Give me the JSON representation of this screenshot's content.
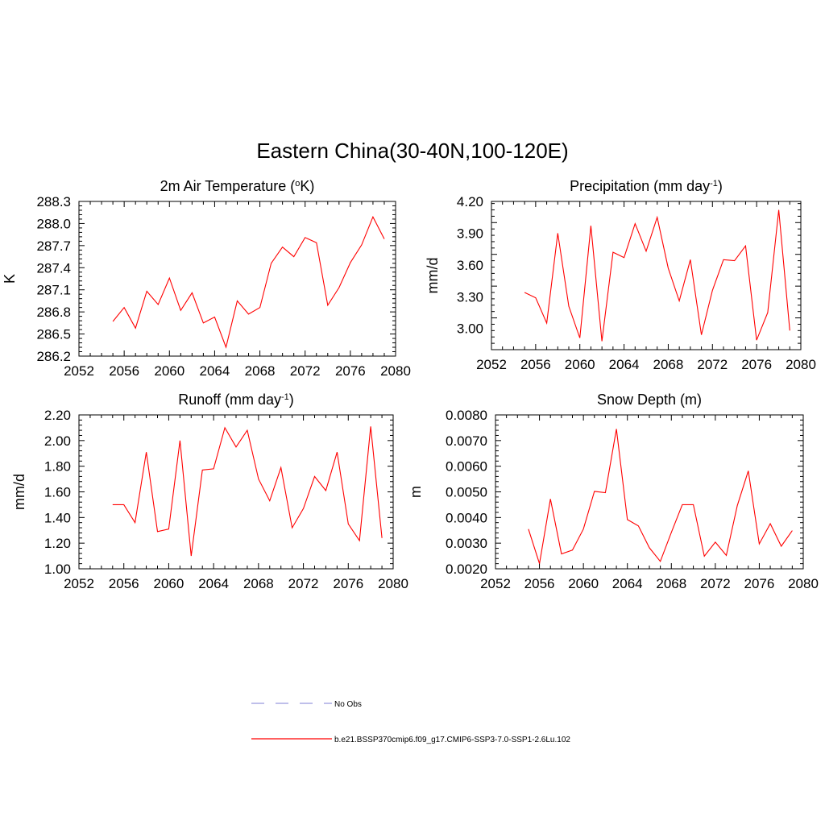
{
  "title": "Eastern China(30-40N,100-120E)",
  "legend": {
    "placement": "bottom-center",
    "entries": [
      {
        "label": "No Obs",
        "color": "#9999dd",
        "dash": true
      },
      {
        "label": "b.e21.BSSP370cmip6.f09_g17.CMIP6-SSP3-7.0-SSP1-2.6Lu.102",
        "color": "#ff0000",
        "dash": false
      }
    ]
  },
  "chart_data": [
    {
      "type": "line",
      "title": "2m Air Temperature (",
      "title_sup": "o",
      "title_tail": "K)",
      "ylabel": "K",
      "xlim": [
        2052,
        2080
      ],
      "ylim": [
        286.2,
        288.3
      ],
      "xticks": [
        2052,
        2056,
        2060,
        2064,
        2068,
        2072,
        2076,
        2080
      ],
      "yticks": [
        286.2,
        286.5,
        286.8,
        287.1,
        287.4,
        287.7,
        288.0,
        288.3
      ],
      "ytick_labels": [
        "286.2",
        "286.5",
        "286.8",
        "287.1",
        "287.4",
        "287.7",
        "288.0",
        "288.3"
      ],
      "series": [
        {
          "color": "#ff0000",
          "x": [
            2055,
            2056,
            2057,
            2058,
            2059,
            2060,
            2061,
            2062,
            2063,
            2064,
            2065,
            2066,
            2067,
            2068,
            2069,
            2070,
            2071,
            2072,
            2073,
            2074,
            2075,
            2076,
            2077,
            2078,
            2079
          ],
          "y": [
            286.67,
            286.86,
            286.58,
            287.08,
            286.9,
            287.26,
            286.82,
            287.06,
            286.65,
            286.73,
            286.32,
            286.95,
            286.77,
            286.86,
            287.46,
            287.68,
            287.55,
            287.81,
            287.74,
            286.89,
            287.13,
            287.47,
            287.71,
            288.09,
            287.79
          ]
        }
      ]
    },
    {
      "type": "line",
      "title": "Precipitation (mm day",
      "title_sup": "-1",
      "title_tail": ")",
      "ylabel": "mm/d",
      "xlim": [
        2052,
        2080
      ],
      "ylim": [
        2.8,
        4.2
      ],
      "xticks": [
        2052,
        2056,
        2060,
        2064,
        2068,
        2072,
        2076,
        2080
      ],
      "yticks": [
        3.0,
        3.3,
        3.6,
        3.9,
        4.2
      ],
      "ytick_labels": [
        "3.00",
        "3.30",
        "3.60",
        "3.90",
        "4.20"
      ],
      "series": [
        {
          "color": "#ff0000",
          "x": [
            2055,
            2056,
            2057,
            2058,
            2059,
            2060,
            2061,
            2062,
            2063,
            2064,
            2065,
            2066,
            2067,
            2068,
            2069,
            2070,
            2071,
            2072,
            2073,
            2074,
            2075,
            2076,
            2077,
            2078,
            2079
          ],
          "y": [
            3.34,
            3.29,
            3.05,
            3.9,
            3.21,
            2.91,
            3.97,
            2.88,
            3.72,
            3.67,
            3.99,
            3.73,
            4.05,
            3.57,
            3.26,
            3.65,
            2.94,
            3.36,
            3.65,
            3.64,
            3.78,
            2.89,
            3.15,
            4.12,
            2.98
          ]
        }
      ]
    },
    {
      "type": "line",
      "title": "Runoff (mm day",
      "title_sup": "-1",
      "title_tail": ")",
      "ylabel": "mm/d",
      "xlim": [
        2052,
        2080
      ],
      "ylim": [
        1.0,
        2.2
      ],
      "xticks": [
        2052,
        2056,
        2060,
        2064,
        2068,
        2072,
        2076,
        2080
      ],
      "yticks": [
        1.0,
        1.2,
        1.4,
        1.6,
        1.8,
        2.0,
        2.2
      ],
      "ytick_labels": [
        "1.00",
        "1.20",
        "1.40",
        "1.60",
        "1.80",
        "2.00",
        "2.20"
      ],
      "series": [
        {
          "color": "#ff0000",
          "x": [
            2055,
            2056,
            2057,
            2058,
            2059,
            2060,
            2061,
            2062,
            2063,
            2064,
            2065,
            2066,
            2067,
            2068,
            2069,
            2070,
            2071,
            2072,
            2073,
            2074,
            2075,
            2076,
            2077,
            2078,
            2079
          ],
          "y": [
            1.5,
            1.5,
            1.36,
            1.91,
            1.29,
            1.31,
            2.0,
            1.1,
            1.77,
            1.78,
            2.1,
            1.95,
            2.08,
            1.7,
            1.53,
            1.79,
            1.32,
            1.47,
            1.72,
            1.61,
            1.91,
            1.35,
            1.22,
            2.11,
            1.24
          ]
        }
      ]
    },
    {
      "type": "line",
      "title": "Snow Depth (m)",
      "title_sup": "",
      "title_tail": "",
      "ylabel": "m",
      "xlim": [
        2052,
        2080
      ],
      "ylim": [
        0.002,
        0.008
      ],
      "xticks": [
        2052,
        2056,
        2060,
        2064,
        2068,
        2072,
        2076,
        2080
      ],
      "yticks": [
        0.002,
        0.003,
        0.004,
        0.005,
        0.006,
        0.007,
        0.008
      ],
      "ytick_labels": [
        "0.0020",
        "0.0030",
        "0.0040",
        "0.0050",
        "0.0060",
        "0.0070",
        "0.0080"
      ],
      "series": [
        {
          "color": "#ff0000",
          "x": [
            2055,
            2056,
            2057,
            2058,
            2059,
            2060,
            2061,
            2062,
            2063,
            2064,
            2065,
            2066,
            2067,
            2068,
            2069,
            2070,
            2071,
            2072,
            2073,
            2074,
            2075,
            2076,
            2077,
            2078,
            2079
          ],
          "y": [
            0.00355,
            0.0022,
            0.00472,
            0.00258,
            0.00273,
            0.00355,
            0.00502,
            0.00497,
            0.00745,
            0.00392,
            0.00367,
            0.00282,
            0.00229,
            0.00342,
            0.0045,
            0.0045,
            0.00249,
            0.00304,
            0.00252,
            0.00446,
            0.00582,
            0.00297,
            0.00376,
            0.00288,
            0.00349
          ]
        }
      ]
    }
  ]
}
